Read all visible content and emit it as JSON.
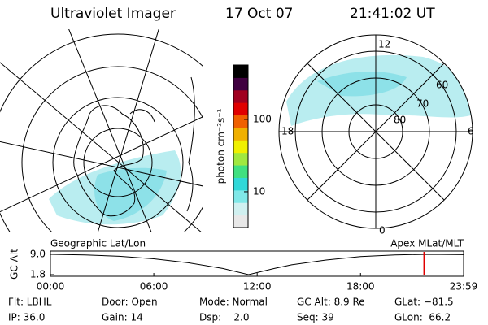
{
  "header": {
    "title": "Ultraviolet Imager",
    "date": "17 Oct 07",
    "time": "21:41:02 UT"
  },
  "colorbar": {
    "label": "photon cm⁻²s⁻¹",
    "scale": "log",
    "clim": [
      3.2,
      565
    ],
    "ticks": [
      10,
      100
    ]
  },
  "polar": {
    "mlt_labels": [
      "12",
      "18",
      "6",
      "0"
    ],
    "mlat_labels": [
      "60",
      "70",
      "80"
    ]
  },
  "map_labels": {
    "left": "Geographic Lat/Lon",
    "right": "Apex MLat/MLT"
  },
  "timeline": {
    "ylabel": "GC Alt",
    "ylim": [
      1.8,
      9
    ],
    "yticks": [
      {
        "value": 9,
        "label": "9.0"
      },
      1.8
    ],
    "xlim": [
      0,
      23.983
    ],
    "xticks": [
      {
        "value": 0,
        "label": "00:00"
      },
      {
        "value": 6,
        "label": "06:00"
      },
      {
        "value": 12,
        "label": "12:00"
      },
      {
        "value": 18,
        "label": "18:00"
      },
      {
        "value": 23.983,
        "label": "23:59"
      }
    ],
    "x": [
      0,
      2,
      4,
      6,
      8,
      10,
      11.5,
      13,
      14,
      16,
      18,
      20,
      22,
      23.983
    ],
    "values": [
      9,
      8.8,
      8.3,
      7.4,
      6,
      4,
      1.8,
      4,
      5.3,
      7,
      8.2,
      8.8,
      9,
      8.9
    ],
    "marker": 21.684,
    "marker_color": "#e00000",
    "line_color": "#000000"
  },
  "footer": [
    [
      "Flt: LBHL",
      "Door: Open",
      "Mode: Normal",
      "GC Alt: 8.9 Re",
      "GLat: −81.5"
    ],
    [
      "IP: 36.0",
      "Gain: 14",
      "Dsp:    2.0",
      "Seq: 39",
      "GLon:  66.2"
    ]
  ]
}
